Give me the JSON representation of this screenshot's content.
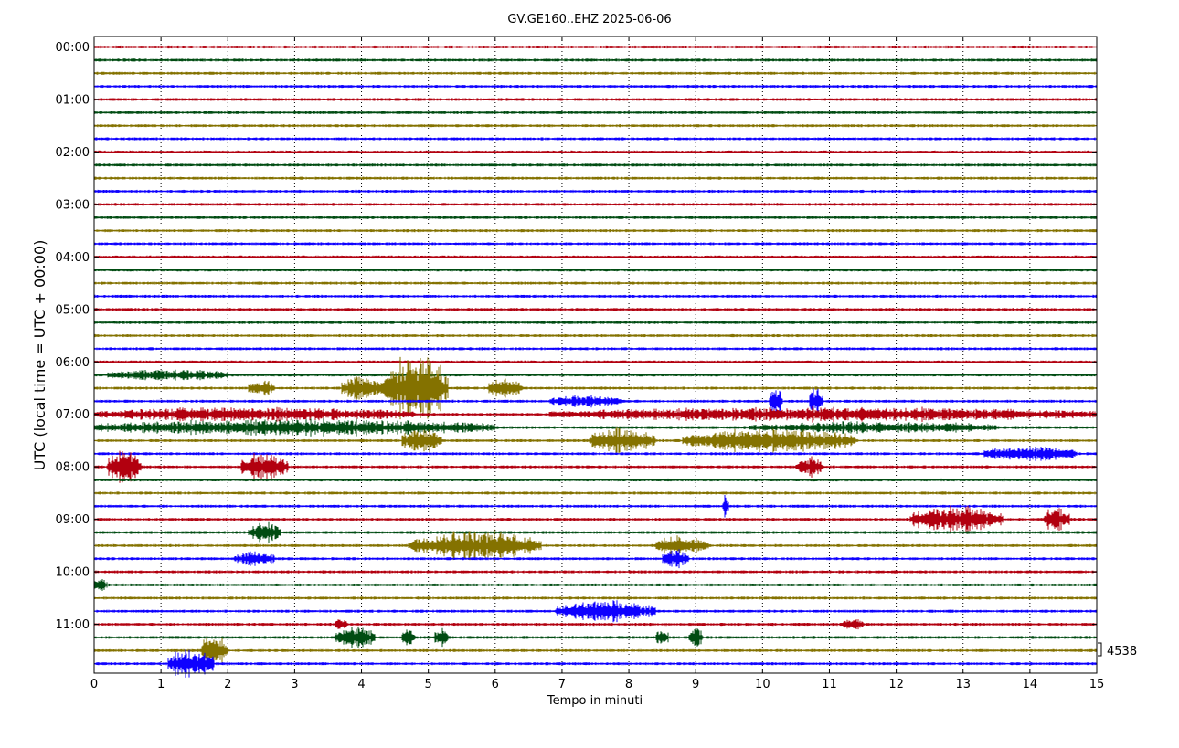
{
  "chart_data": {
    "type": "line",
    "title": "GV.GE160..EHZ 2025-06-06",
    "xlabel": "Tempo in minuti",
    "ylabel": "UTC (local time = UTC + 00:00)",
    "xlim": [
      0,
      15
    ],
    "x_ticks": [
      "0",
      "1",
      "2",
      "3",
      "4",
      "5",
      "6",
      "7",
      "8",
      "9",
      "10",
      "11",
      "12",
      "13",
      "14",
      "15"
    ],
    "y_ticks": [
      "00:00",
      "01:00",
      "02:00",
      "03:00",
      "04:00",
      "05:00",
      "06:00",
      "07:00",
      "08:00",
      "09:00",
      "10:00",
      "11:00"
    ],
    "row_interval_minutes": 15,
    "row_count": 48,
    "row_colors": [
      "#b2000f",
      "#004c12",
      "#847200",
      "#0e01ff"
    ],
    "scale_label": "4538",
    "grid": "x-dotted",
    "events": [
      {
        "row": 25,
        "x": [
          0.2,
          2.0
        ],
        "amp": 4
      },
      {
        "row": 26,
        "x": [
          2.3,
          2.7
        ],
        "amp": 6
      },
      {
        "row": 26,
        "x": [
          3.7,
          4.3
        ],
        "amp": 10
      },
      {
        "row": 26,
        "x": [
          4.3,
          5.3
        ],
        "amp": 28
      },
      {
        "row": 26,
        "x": [
          5.9,
          6.4
        ],
        "amp": 9
      },
      {
        "row": 27,
        "x": [
          6.8,
          7.9
        ],
        "amp": 4
      },
      {
        "row": 27,
        "x": [
          10.1,
          10.3
        ],
        "amp": 12
      },
      {
        "row": 27,
        "x": [
          10.7,
          10.9
        ],
        "amp": 12
      },
      {
        "row": 28,
        "x": [
          0.0,
          4.8
        ],
        "amp": 5
      },
      {
        "row": 28,
        "x": [
          6.8,
          15.0
        ],
        "amp": 5
      },
      {
        "row": 29,
        "x": [
          0.0,
          6.0
        ],
        "amp": 6
      },
      {
        "row": 29,
        "x": [
          9.8,
          13.5
        ],
        "amp": 4
      },
      {
        "row": 30,
        "x": [
          4.6,
          5.2
        ],
        "amp": 10
      },
      {
        "row": 30,
        "x": [
          7.4,
          8.4
        ],
        "amp": 10
      },
      {
        "row": 30,
        "x": [
          8.8,
          11.4
        ],
        "amp": 9
      },
      {
        "row": 31,
        "x": [
          13.3,
          14.7
        ],
        "amp": 6
      },
      {
        "row": 32,
        "x": [
          0.2,
          0.7
        ],
        "amp": 14
      },
      {
        "row": 32,
        "x": [
          2.2,
          2.9
        ],
        "amp": 12
      },
      {
        "row": 32,
        "x": [
          10.5,
          10.9
        ],
        "amp": 9
      },
      {
        "row": 35,
        "x": [
          9.4,
          9.5
        ],
        "amp": 8
      },
      {
        "row": 36,
        "x": [
          12.2,
          13.6
        ],
        "amp": 10
      },
      {
        "row": 36,
        "x": [
          14.2,
          14.6
        ],
        "amp": 9
      },
      {
        "row": 37,
        "x": [
          2.3,
          2.8
        ],
        "amp": 8
      },
      {
        "row": 38,
        "x": [
          4.7,
          6.7
        ],
        "amp": 12
      },
      {
        "row": 38,
        "x": [
          8.4,
          9.2
        ],
        "amp": 7
      },
      {
        "row": 39,
        "x": [
          2.1,
          2.7
        ],
        "amp": 5
      },
      {
        "row": 39,
        "x": [
          8.5,
          8.9
        ],
        "amp": 7
      },
      {
        "row": 41,
        "x": [
          0.0,
          0.2
        ],
        "amp": 4
      },
      {
        "row": 43,
        "x": [
          6.9,
          8.4
        ],
        "amp": 8
      },
      {
        "row": 44,
        "x": [
          3.6,
          3.8
        ],
        "amp": 4
      },
      {
        "row": 44,
        "x": [
          11.2,
          11.5
        ],
        "amp": 4
      },
      {
        "row": 45,
        "x": [
          3.6,
          4.2
        ],
        "amp": 9
      },
      {
        "row": 45,
        "x": [
          4.6,
          4.8
        ],
        "amp": 8
      },
      {
        "row": 45,
        "x": [
          5.1,
          5.3
        ],
        "amp": 8
      },
      {
        "row": 45,
        "x": [
          8.4,
          8.6
        ],
        "amp": 7
      },
      {
        "row": 45,
        "x": [
          8.9,
          9.1
        ],
        "amp": 8
      },
      {
        "row": 46,
        "x": [
          1.6,
          2.0
        ],
        "amp": 14
      },
      {
        "row": 47,
        "x": [
          1.1,
          1.8
        ],
        "amp": 12
      }
    ]
  }
}
